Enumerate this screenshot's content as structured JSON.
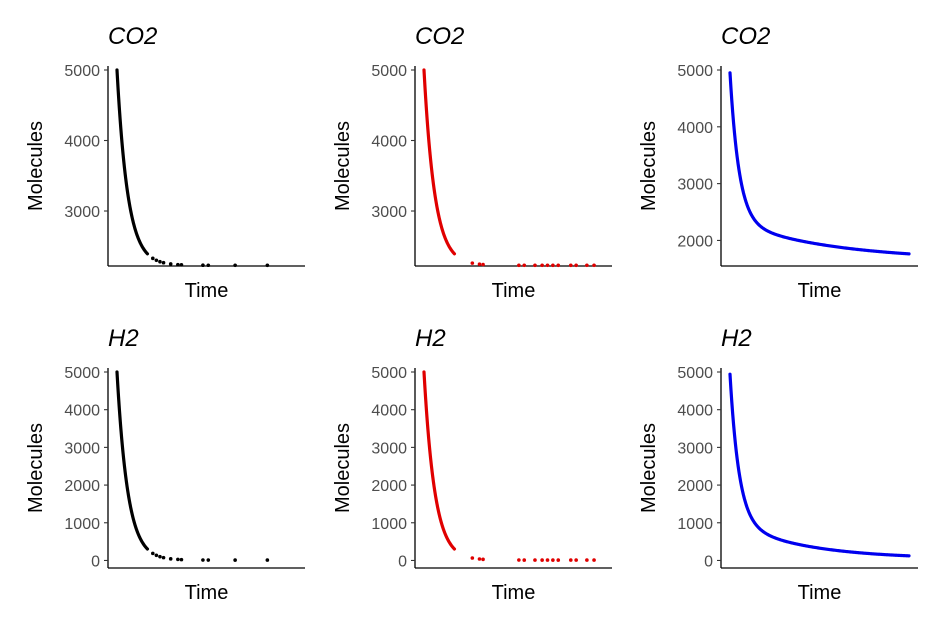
{
  "chart_data": [
    {
      "type": "scatter",
      "title": "CO2",
      "xlabel": "Time",
      "ylabel": "Molecules",
      "color": "#000000",
      "ylim": [
        2220,
        5000
      ],
      "yticks": [
        3000,
        4000,
        5000
      ],
      "asymptote": 2230,
      "decay": 0.06,
      "xmax": 1,
      "grid": false,
      "sparse_x": [
        0.2,
        0.22,
        0.24,
        0.26,
        0.3,
        0.34,
        0.36,
        0.48,
        0.51,
        0.66,
        0.84
      ]
    },
    {
      "type": "scatter",
      "title": "CO2",
      "xlabel": "Time",
      "ylabel": "Molecules",
      "color": "#e00000",
      "ylim": [
        2220,
        5000
      ],
      "yticks": [
        3000,
        4000,
        5000
      ],
      "asymptote": 2230,
      "decay": 0.06,
      "xmax": 1,
      "grid": false,
      "sparse_x": [
        0.27,
        0.31,
        0.33,
        0.53,
        0.56,
        0.62,
        0.66,
        0.69,
        0.72,
        0.75,
        0.82,
        0.85,
        0.91,
        0.95
      ]
    },
    {
      "type": "line",
      "title": "CO2",
      "xlabel": "Time",
      "ylabel": "Molecules",
      "color": "#0000ee",
      "ylim": [
        1550,
        5000
      ],
      "yticks": [
        2000,
        3000,
        4000,
        5000
      ],
      "curve_a": [
        2600,
        0.05,
        700,
        0.55,
        1650
      ],
      "xmax": 1,
      "grid": false
    },
    {
      "type": "scatter",
      "title": "H2",
      "xlabel": "Time",
      "ylabel": "Molecules",
      "color": "#000000",
      "ylim": [
        -200,
        5000
      ],
      "yticks": [
        0,
        1000,
        2000,
        3000,
        4000,
        5000
      ],
      "asymptote": 10,
      "decay": 0.06,
      "xmax": 1,
      "grid": false,
      "sparse_x": [
        0.2,
        0.22,
        0.24,
        0.26,
        0.3,
        0.34,
        0.36,
        0.48,
        0.51,
        0.66,
        0.84
      ]
    },
    {
      "type": "scatter",
      "title": "H2",
      "xlabel": "Time",
      "ylabel": "Molecules",
      "color": "#e00000",
      "ylim": [
        -200,
        5000
      ],
      "yticks": [
        0,
        1000,
        2000,
        3000,
        4000,
        5000
      ],
      "asymptote": 10,
      "decay": 0.06,
      "xmax": 1,
      "grid": false,
      "sparse_x": [
        0.27,
        0.31,
        0.33,
        0.53,
        0.56,
        0.62,
        0.66,
        0.69,
        0.72,
        0.75,
        0.82,
        0.85,
        0.91,
        0.95
      ]
    },
    {
      "type": "line",
      "title": "H2",
      "xlabel": "Time",
      "ylabel": "Molecules",
      "color": "#0000ee",
      "ylim": [
        -200,
        5000
      ],
      "yticks": [
        0,
        1000,
        2000,
        3000,
        4000,
        5000
      ],
      "curve_a": [
        3900,
        0.05,
        1000,
        0.4,
        40
      ],
      "xmax": 1,
      "grid": false
    }
  ]
}
